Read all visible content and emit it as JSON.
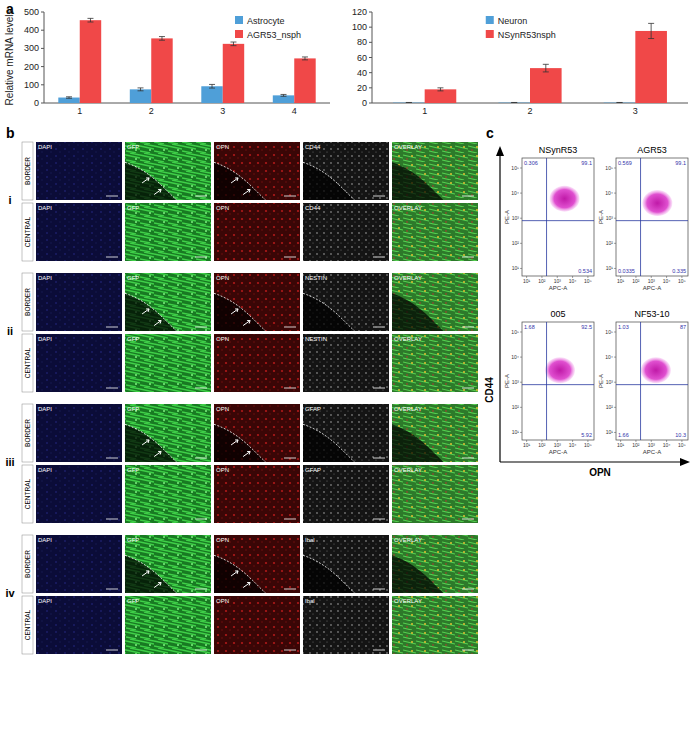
{
  "panel_labels": [
    "a",
    "b",
    "c"
  ],
  "chart_data": [
    {
      "type": "bar",
      "y_label": "Relative mRNA levels",
      "categories": [
        "1",
        "2",
        "3",
        "4"
      ],
      "series": [
        {
          "name": "Astrocyte",
          "color": "#4f9fd8",
          "values": [
            30,
            75,
            92,
            42
          ],
          "errors": [
            4,
            8,
            10,
            5
          ]
        },
        {
          "name": "AGR53_nsph",
          "color": "#f04848",
          "values": [
            455,
            355,
            325,
            245
          ],
          "errors": [
            10,
            10,
            10,
            8
          ]
        }
      ],
      "ylim": [
        0,
        500
      ],
      "yticks": [
        0,
        100,
        200,
        300,
        400,
        500
      ],
      "legend": "top-right"
    },
    {
      "type": "bar",
      "categories": [
        "1",
        "2",
        "3"
      ],
      "series": [
        {
          "name": "Neuron",
          "color": "#4f9fd8",
          "values": [
            0.5,
            0.5,
            0.5
          ],
          "errors": [
            0.2,
            0.2,
            0.2
          ]
        },
        {
          "name": "NSynR53nsph",
          "color": "#f04848",
          "values": [
            18,
            46,
            95
          ],
          "errors": [
            2,
            5,
            10
          ]
        }
      ],
      "ylim": [
        0,
        120
      ],
      "yticks": [
        0,
        20,
        40,
        60,
        80,
        100,
        120
      ],
      "legend": "top"
    }
  ],
  "microscopy": {
    "rows": [
      "BORDER",
      "CENTRAL"
    ],
    "subpanels": [
      {
        "numeral": "i",
        "channels": [
          "DAPI",
          "GFP",
          "OPN",
          "CD44",
          "OVERLAY"
        ]
      },
      {
        "numeral": "ii",
        "channels": [
          "DAPI",
          "GFP",
          "OPN",
          "NESTIN",
          "OVERLAY"
        ]
      },
      {
        "numeral": "iii",
        "channels": [
          "DAPI",
          "GFP",
          "OPN",
          "GFAP",
          "OVERLAY"
        ]
      },
      {
        "numeral": "iv",
        "channels": [
          "DAPI",
          "GFP",
          "OPN",
          "Ibal",
          "OVERLAY"
        ]
      }
    ]
  },
  "flow_cytometry": {
    "x_label": "OPN",
    "y_label": "CD44",
    "x_axis_label": "APC-A",
    "y_axis_label": "PE-A",
    "log": true,
    "xlim": [
      5,
      250000
    ],
    "ylim": [
      5,
      250000
    ],
    "xticks": [
      {
        "value": 10,
        "label": "10¹"
      },
      {
        "value": 100,
        "label": "10²"
      },
      {
        "value": 1000,
        "label": "10³"
      },
      {
        "value": 10000,
        "label": "10⁴"
      },
      {
        "value": 100000,
        "label": "10⁵"
      }
    ],
    "yticks": [
      {
        "value": 10,
        "label": "10¹"
      },
      {
        "value": 100,
        "label": "10²"
      },
      {
        "value": 1000,
        "label": "10³"
      },
      {
        "value": 10000,
        "label": "10⁴"
      },
      {
        "value": 100000,
        "label": "10⁵"
      }
    ],
    "plots": [
      {
        "title": "NSynR53",
        "quadrants": {
          "top_left": 0.306,
          "top_right": 99.1,
          "bottom_right": 0.534
        },
        "center": [
          3000,
          6000
        ],
        "gate": [
          200,
          800
        ]
      },
      {
        "title": "AGR53",
        "quadrants": {
          "top_left": 0.569,
          "top_right": 99.1,
          "bottom_left": 0.0335,
          "bottom_right": 0.335
        },
        "center": [
          2500,
          4000
        ],
        "gate": [
          200,
          800
        ]
      },
      {
        "title": "005",
        "quadrants": {
          "top_left": 1.68,
          "top_right": 92.5,
          "bottom_right": 5.92
        },
        "center": [
          1500,
          3000
        ],
        "gate": [
          200,
          800
        ]
      },
      {
        "title": "NF53-10",
        "quadrants": {
          "top_left": 1.03,
          "top_right": 87,
          "bottom_left": 1.66,
          "bottom_right": 10.3
        },
        "center": [
          2000,
          3000
        ],
        "gate": [
          200,
          800
        ]
      }
    ]
  }
}
